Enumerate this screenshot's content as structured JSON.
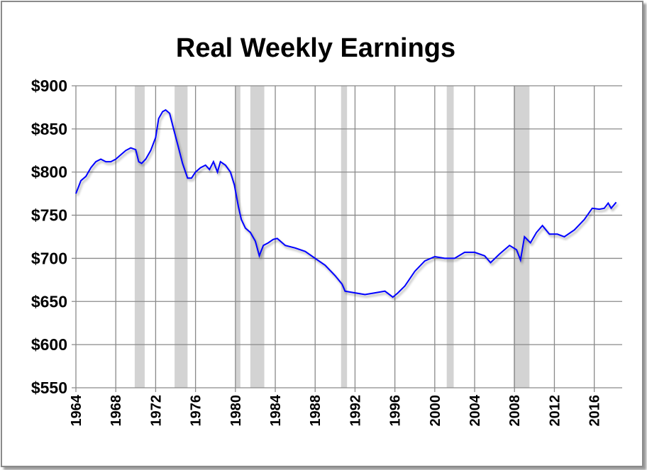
{
  "chart_data": {
    "type": "line",
    "title": "Real Weekly Earnings",
    "xlabel": "",
    "ylabel": "",
    "xlim": [
      1964,
      2018.8
    ],
    "ylim": [
      550,
      900
    ],
    "grid": true,
    "x_ticks": [
      "1964",
      "1968",
      "1972",
      "1976",
      "1980",
      "1984",
      "1988",
      "1992",
      "1996",
      "2000",
      "2004",
      "2008",
      "2012",
      "2016"
    ],
    "y_ticks": [
      "$550",
      "$600",
      "$650",
      "$700",
      "$750",
      "$800",
      "$850",
      "$900"
    ],
    "line_color": "#0000ff",
    "shade_color": "#d3d3d3",
    "shaded_periods": [
      [
        1969.9,
        1970.9
      ],
      [
        1973.9,
        1975.2
      ],
      [
        1980.0,
        1980.5
      ],
      [
        1981.5,
        1982.9
      ],
      [
        1990.6,
        1991.2
      ],
      [
        2001.2,
        2001.9
      ],
      [
        2007.9,
        2009.5
      ]
    ],
    "series": [
      {
        "x": [
          1964,
          1964.5,
          1965,
          1965.5,
          1966,
          1966.5,
          1967,
          1967.5,
          1968,
          1968.5,
          1969,
          1969.5,
          1970,
          1970.3,
          1970.6,
          1971,
          1971.5,
          1972,
          1972.3,
          1972.7,
          1973,
          1973.4,
          1973.8,
          1974.3,
          1974.7,
          1975.2,
          1975.6,
          1976,
          1976.5,
          1977,
          1977.4,
          1977.8,
          1978.2,
          1978.5,
          1979,
          1979.5,
          1979.9,
          1980.3,
          1980.6,
          1981,
          1981.5,
          1982,
          1982.4,
          1982.8,
          1983.3,
          1983.8,
          1984.2,
          1985,
          1986,
          1987,
          1988,
          1989,
          1990,
          1990.7,
          1991,
          1992,
          1993,
          1994,
          1995,
          1995.8,
          1996.3,
          1997,
          1998,
          1999,
          2000,
          2001,
          2002,
          2003,
          2004,
          2005,
          2005.6,
          2006.5,
          2007.5,
          2008.2,
          2008.6,
          2009,
          2009.6,
          2010.2,
          2010.8,
          2011.5,
          2012.3,
          2013,
          2014,
          2015,
          2015.8,
          2016.5,
          2017,
          2017.4,
          2017.7,
          2018.2
        ],
        "values": [
          775,
          790,
          795,
          805,
          812,
          815,
          812,
          812,
          815,
          820,
          825,
          828,
          826,
          812,
          810,
          815,
          825,
          840,
          862,
          870,
          872,
          868,
          850,
          828,
          810,
          793,
          793,
          800,
          805,
          808,
          803,
          812,
          800,
          812,
          808,
          800,
          785,
          760,
          745,
          735,
          730,
          720,
          703,
          715,
          718,
          722,
          723,
          715,
          712,
          708,
          700,
          692,
          680,
          670,
          662,
          660,
          658,
          660,
          662,
          655,
          660,
          668,
          685,
          697,
          702,
          700,
          700,
          707,
          707,
          703,
          695,
          705,
          715,
          710,
          698,
          725,
          718,
          730,
          738,
          728,
          728,
          725,
          733,
          745,
          758,
          757,
          758,
          764,
          758,
          765
        ]
      }
    ]
  }
}
